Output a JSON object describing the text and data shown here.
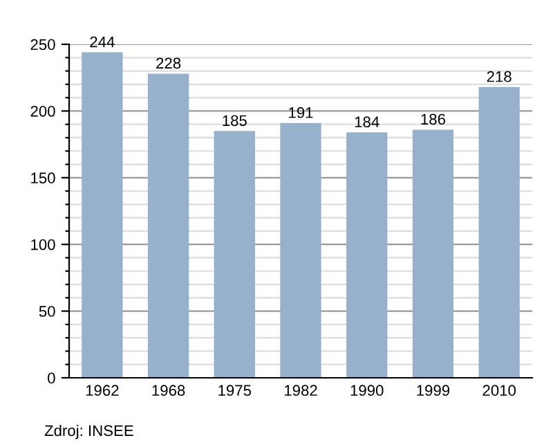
{
  "chart_data": {
    "type": "bar",
    "categories": [
      "1962",
      "1968",
      "1975",
      "1982",
      "1990",
      "1999",
      "2010"
    ],
    "values": [
      244,
      228,
      185,
      191,
      184,
      186,
      218
    ],
    "color": "#97b0cc",
    "data_labels": true,
    "ylim": [
      0,
      250
    ],
    "yticks": [
      0,
      {
        "value": 10,
        "label": null
      },
      {
        "value": 20,
        "label": null
      },
      {
        "value": 30,
        "label": null
      },
      {
        "value": 40,
        "label": null
      },
      50,
      {
        "value": 60,
        "label": null
      },
      {
        "value": 70,
        "label": null
      },
      {
        "value": 80,
        "label": null
      },
      {
        "value": 90,
        "label": null
      },
      100,
      {
        "value": 110,
        "label": null
      },
      {
        "value": 120,
        "label": null
      },
      {
        "value": 130,
        "label": null
      },
      {
        "value": 140,
        "label": null
      },
      150,
      {
        "value": 160,
        "label": null
      },
      {
        "value": 170,
        "label": null
      },
      {
        "value": 180,
        "label": null
      },
      {
        "value": 190,
        "label": null
      },
      200,
      {
        "value": 210,
        "label": null
      },
      {
        "value": 220,
        "label": null
      },
      {
        "value": 230,
        "label": null
      },
      {
        "value": 240,
        "label": null
      },
      250
    ],
    "grid": "y",
    "annotations": [
      "Zdroj: INSEE"
    ]
  }
}
